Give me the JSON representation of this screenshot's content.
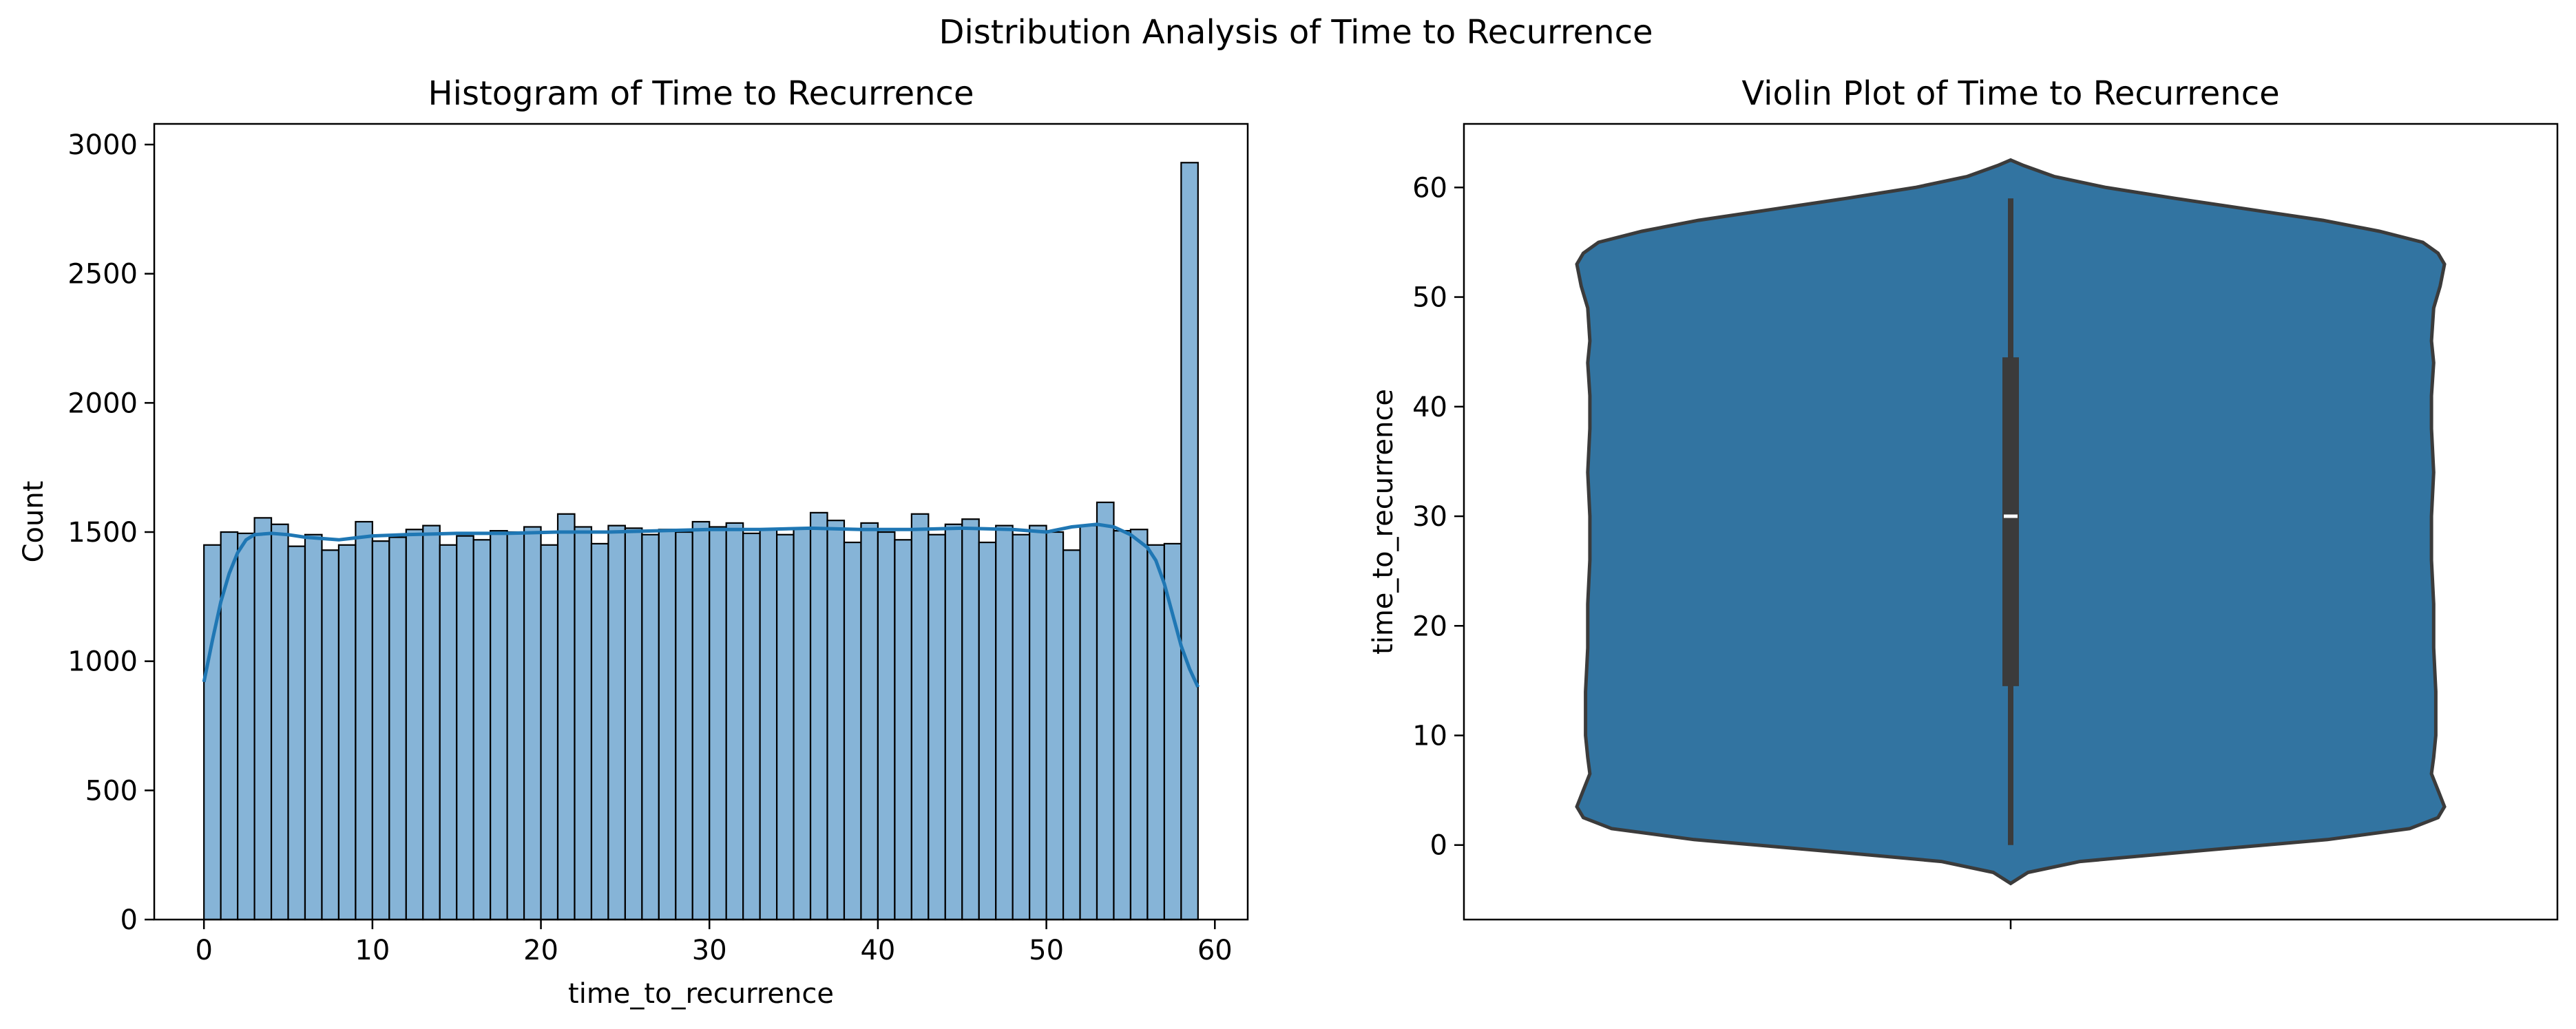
{
  "figure": {
    "suptitle": "Distribution Analysis of Time to Recurrence"
  },
  "chart_data": [
    {
      "type": "bar",
      "subtype": "histogram_with_kde",
      "title": "Histogram of Time to Recurrence",
      "xlabel": "time_to_recurrence",
      "ylabel": "Count",
      "xlim": [
        -2.95,
        61.95
      ],
      "ylim": [
        0,
        3080
      ],
      "xticks": [
        0,
        10,
        20,
        30,
        40,
        50,
        60
      ],
      "yticks": [
        0,
        500,
        1000,
        1500,
        2000,
        2500,
        3000
      ],
      "bin_start": 0,
      "bin_width": 1,
      "values": [
        1450,
        1500,
        1495,
        1555,
        1530,
        1445,
        1490,
        1430,
        1450,
        1540,
        1465,
        1480,
        1510,
        1525,
        1450,
        1485,
        1470,
        1505,
        1500,
        1520,
        1450,
        1570,
        1520,
        1455,
        1525,
        1515,
        1490,
        1510,
        1500,
        1540,
        1520,
        1535,
        1495,
        1510,
        1490,
        1515,
        1575,
        1545,
        1460,
        1535,
        1500,
        1470,
        1570,
        1490,
        1530,
        1550,
        1460,
        1525,
        1490,
        1525,
        1500,
        1430,
        1525,
        1615,
        1505,
        1510,
        1450,
        1455,
        2930
      ],
      "kde": {
        "x": [
          0,
          0.5,
          1,
          1.5,
          2,
          2.5,
          3,
          4,
          5,
          6,
          8,
          10,
          12,
          15,
          18,
          21,
          24,
          27,
          30,
          33,
          36,
          39,
          42,
          45,
          48,
          50,
          51.5,
          53,
          54,
          55,
          56,
          56.5,
          57,
          57.5,
          58,
          58.5,
          59
        ],
        "y": [
          920,
          1080,
          1230,
          1340,
          1420,
          1470,
          1490,
          1495,
          1490,
          1480,
          1470,
          1485,
          1490,
          1495,
          1495,
          1500,
          1500,
          1505,
          1510,
          1510,
          1515,
          1510,
          1510,
          1515,
          1510,
          1500,
          1520,
          1530,
          1520,
          1490,
          1440,
          1390,
          1300,
          1180,
          1060,
          970,
          900
        ]
      },
      "colors": {
        "bar_fill": "#86b4d7",
        "bar_edge": "#000000",
        "kde": "#1f77b4"
      },
      "grid": false
    },
    {
      "type": "violin",
      "title": "Violin Plot of Time to Recurrence",
      "ylabel": "time_to_recurrence",
      "xlabel": "",
      "ylim": [
        -6.8,
        65.8
      ],
      "yticks": [
        0,
        10,
        20,
        30,
        40,
        50,
        60
      ],
      "density": {
        "y": [
          -3.5,
          -2.5,
          -1.5,
          -0.5,
          0.5,
          1.5,
          2.5,
          3.5,
          5,
          6.5,
          8,
          10,
          14,
          18,
          22,
          26,
          30,
          34,
          38,
          41,
          44,
          46,
          49,
          51,
          53,
          54,
          55,
          56,
          57,
          58,
          59,
          60,
          61,
          62,
          62.5
        ],
        "width": [
          0.0,
          0.04,
          0.16,
          0.44,
          0.73,
          0.92,
          0.985,
          1.0,
          0.985,
          0.97,
          0.975,
          0.98,
          0.98,
          0.975,
          0.975,
          0.97,
          0.97,
          0.975,
          0.97,
          0.97,
          0.975,
          0.97,
          0.975,
          0.99,
          1.0,
          0.985,
          0.95,
          0.85,
          0.72,
          0.55,
          0.38,
          0.22,
          0.1,
          0.03,
          0.0
        ]
      },
      "box": {
        "min": 0,
        "q1": 14.5,
        "median": 30,
        "q3": 44.5,
        "max": 59
      },
      "colors": {
        "fill": "#3274a1",
        "edge": "#3b3b3b",
        "box": "#3b3b3b",
        "median": "#ffffff"
      },
      "grid": false
    }
  ]
}
